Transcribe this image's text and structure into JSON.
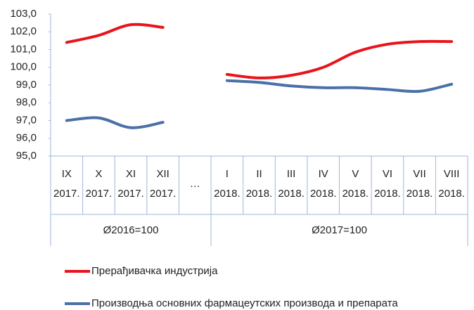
{
  "chart_data": {
    "type": "line",
    "categories": [
      [
        "IX",
        "2017."
      ],
      [
        "X",
        "2017."
      ],
      [
        "XI",
        "2017."
      ],
      [
        "XII",
        "2017."
      ],
      [
        "…"
      ],
      [
        "I",
        "2018."
      ],
      [
        "II",
        "2018."
      ],
      [
        "III",
        "2018."
      ],
      [
        "IV",
        "2018."
      ],
      [
        "V",
        "2018."
      ],
      [
        "VI",
        "2018."
      ],
      [
        "VII",
        "2018."
      ],
      [
        "VIII",
        "2018."
      ]
    ],
    "groups": [
      {
        "label": "Ø2016=100",
        "from": 0,
        "to": 4
      },
      {
        "label": "Ø2017=100",
        "from": 5,
        "to": 12
      }
    ],
    "series": [
      {
        "name": "Прерађивачка индустрија",
        "color": "#e8141c",
        "values": [
          101.4,
          101.8,
          102.4,
          102.25,
          null,
          99.6,
          99.4,
          99.55,
          100.0,
          100.85,
          101.3,
          101.45,
          101.45
        ]
      },
      {
        "name": "Производња основних фармацеутских производа и препарата",
        "color": "#4a70a8",
        "values": [
          97.0,
          97.15,
          96.6,
          96.9,
          null,
          99.25,
          99.15,
          98.95,
          98.85,
          98.85,
          98.75,
          98.65,
          99.05
        ]
      }
    ],
    "ylim": [
      95,
      103
    ],
    "yticks": [
      {
        "value": 95,
        "label": "95,0"
      },
      {
        "value": 96,
        "label": "96,0"
      },
      {
        "value": 97,
        "label": "97,0"
      },
      {
        "value": 98,
        "label": "98,0"
      },
      {
        "value": 99,
        "label": "99,0"
      },
      {
        "value": 100,
        "label": "100,0"
      },
      {
        "value": 101,
        "label": "101,0"
      },
      {
        "value": 102,
        "label": "102,0"
      },
      {
        "value": 103,
        "label": "103,0"
      }
    ],
    "legend": "bottom"
  }
}
